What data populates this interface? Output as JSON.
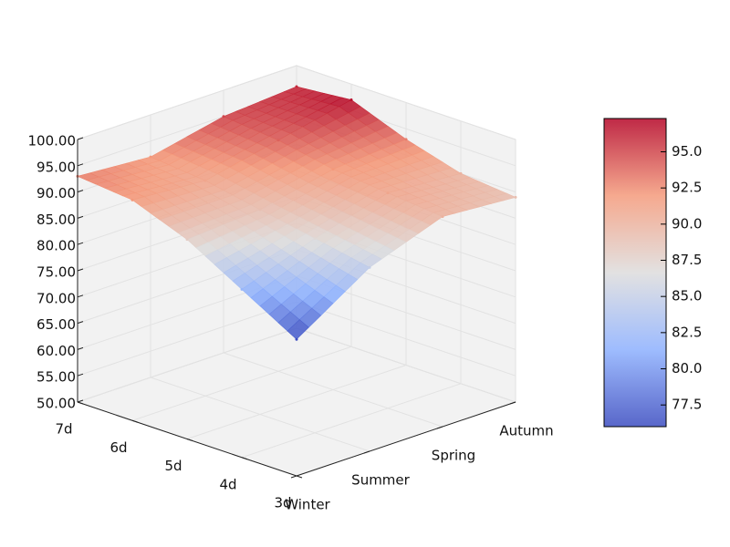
{
  "chart_data": {
    "type": "surface3d",
    "x": [
      "Winter",
      "Summer",
      "Spring",
      "Autumn"
    ],
    "y": [
      "3d",
      "4d",
      "5d",
      "6d",
      "7d"
    ],
    "z": [
      [
        76,
        85,
        90,
        89
      ],
      [
        82,
        87,
        91,
        90
      ],
      [
        88,
        89,
        92,
        93
      ],
      [
        92,
        91,
        94,
        97
      ],
      [
        93,
        92,
        95,
        96
      ]
    ],
    "zlim": [
      50,
      100
    ],
    "zticks": [
      {
        "value": 50,
        "label": "50.00"
      },
      {
        "value": 55,
        "label": "55.00"
      },
      {
        "value": 60,
        "label": "60.00"
      },
      {
        "value": 65,
        "label": "65.00"
      },
      {
        "value": 70,
        "label": "70.00"
      },
      {
        "value": 75,
        "label": "75.00"
      },
      {
        "value": 80,
        "label": "80.00"
      },
      {
        "value": 85,
        "label": "85.00"
      },
      {
        "value": 90,
        "label": "90.00"
      },
      {
        "value": 95,
        "label": "95.00"
      },
      {
        "value": 100,
        "label": "100.00"
      }
    ],
    "colormap": "coolwarm",
    "clim": [
      76,
      97.3
    ],
    "cticks": [
      77.5,
      {
        "value": 80,
        "label": "80.0"
      },
      82.5,
      {
        "value": 85,
        "label": "85.0"
      },
      87.5,
      {
        "value": 90,
        "label": "90.0"
      },
      92.5,
      {
        "value": 95,
        "label": "95.0"
      }
    ]
  }
}
